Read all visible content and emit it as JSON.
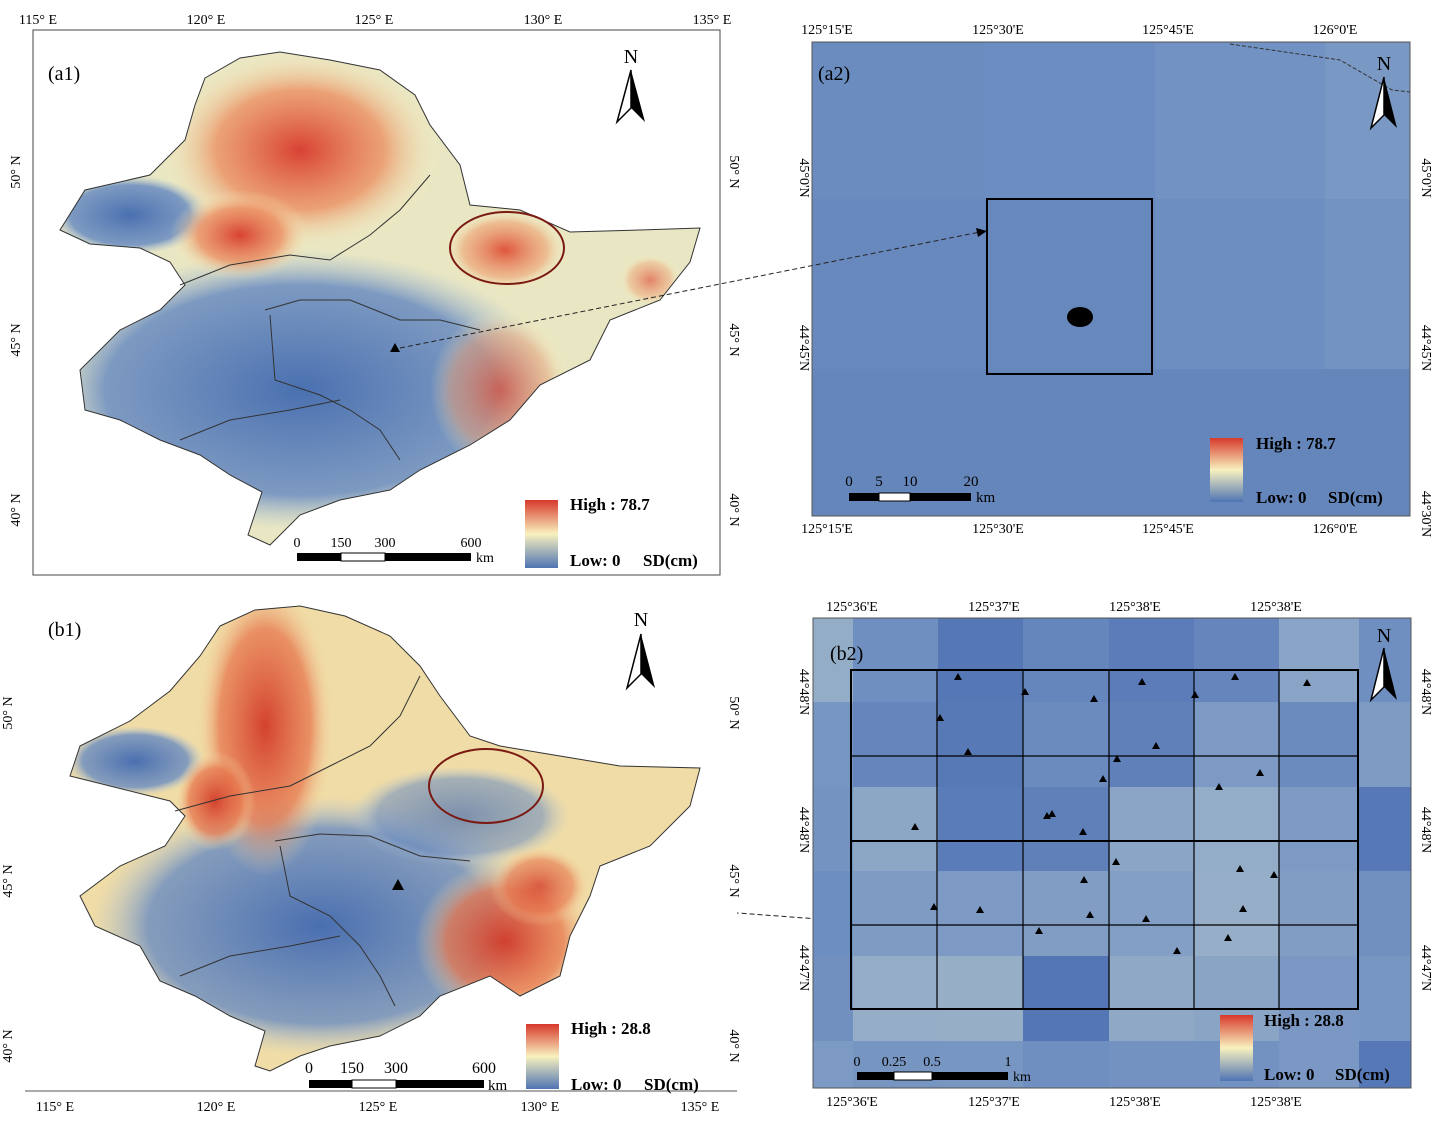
{
  "panels": {
    "a1": {
      "label": "(a1)",
      "top_ticks": [
        "115° E",
        "120° E",
        "125° E",
        "130° E",
        "135° E"
      ],
      "left_ticks": [
        "50° N",
        "45° N",
        "40° N"
      ],
      "right_ticks": [
        "50° N",
        "45° N",
        "40° N"
      ],
      "north": "N",
      "legend": {
        "high": "High : 78.7",
        "low": "Low: 0",
        "unit": "SD(cm)"
      },
      "scalebar": {
        "labels": [
          "0",
          "150",
          "300",
          "600"
        ],
        "unit": "km"
      }
    },
    "a2": {
      "label": "(a2)",
      "top_ticks": [
        "125°15'E",
        "125°30'E",
        "125°45'E",
        "126°0'E"
      ],
      "bottom_ticks": [
        "125°15'E",
        "125°30'E",
        "125°45'E",
        "126°0'E"
      ],
      "left_ticks": [
        "45°0'N",
        "44°45'N"
      ],
      "right_ticks": [
        "45°0'N",
        "44°45'N",
        "44°30'N"
      ],
      "north": "N",
      "legend": {
        "high": "High : 78.7",
        "low": "Low: 0",
        "unit": "SD(cm)"
      },
      "scalebar": {
        "labels": [
          "0",
          "5",
          "10",
          "20"
        ],
        "unit": "km"
      }
    },
    "b1": {
      "label": "(b1)",
      "bottom_ticks": [
        "115° E",
        "120° E",
        "125° E",
        "130° E",
        "135° E"
      ],
      "left_ticks": [
        "50° N",
        "45° N",
        "40° N"
      ],
      "right_ticks": [
        "50° N",
        "45° N",
        "40° N"
      ],
      "north": "N",
      "legend": {
        "high": "High : 28.8",
        "low": "Low: 0",
        "unit": "SD(cm)"
      },
      "scalebar": {
        "labels": [
          "0",
          "150",
          "300",
          "600"
        ],
        "unit": "km"
      }
    },
    "b2": {
      "label": "(b2)",
      "top_ticks": [
        "125°36'E",
        "125°37'E",
        "125°38'E",
        "125°38'E"
      ],
      "bottom_ticks": [
        "125°36'E",
        "125°37'E",
        "125°38'E",
        "125°38'E"
      ],
      "left_ticks": [
        "44°48'N",
        "44°48'N",
        "44°47'N"
      ],
      "right_ticks": [
        "44°48'N",
        "44°48'N",
        "44°47'N"
      ],
      "north": "N",
      "legend": {
        "high": "High : 28.8",
        "low": "Low: 0",
        "unit": "SD(cm)"
      },
      "scalebar": {
        "labels": [
          "0",
          "0.25",
          "0.5",
          "1"
        ],
        "unit": "km"
      }
    }
  },
  "colors": {
    "high": "#d7392b",
    "mid": "#f8f1bf",
    "low": "#4f74b3",
    "background_blue": "#6a8cc1",
    "ellipse": "#7a1a12"
  }
}
